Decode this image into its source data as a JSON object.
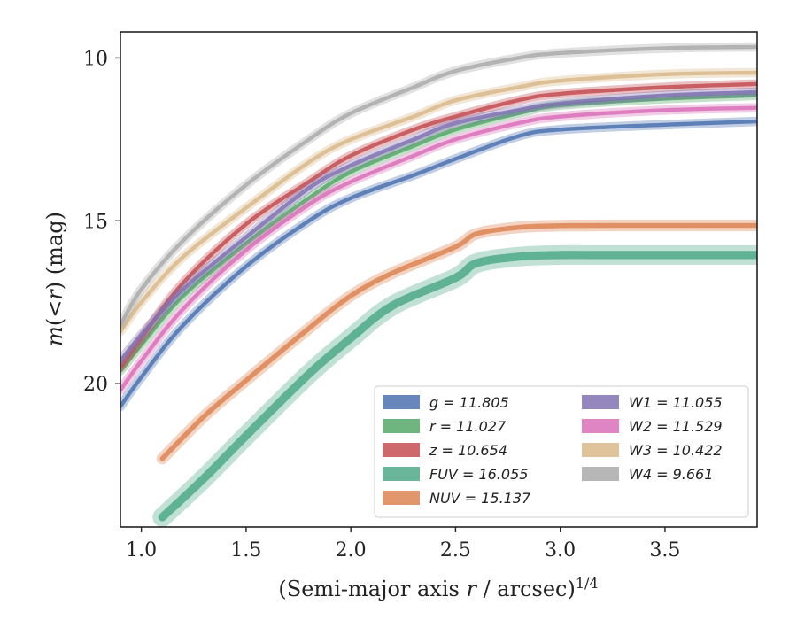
{
  "chart_data": {
    "type": "line",
    "xlabel": "(Semi-major axis r / arcsec)^1/4",
    "ylabel": "m(<r) (mag)",
    "xlim": [
      0.9,
      3.94
    ],
    "ylim": [
      24.4,
      9.2
    ],
    "y_inverted": true,
    "grid": false,
    "legend_position": "lower-right",
    "legend_columns": 2,
    "x_ticks": [
      {
        "value": 1.0,
        "label": "1.0"
      },
      {
        "value": 1.5,
        "label": "1.5"
      },
      {
        "value": 2.0,
        "label": "2.0"
      },
      {
        "value": 2.5,
        "label": "2.5"
      },
      {
        "value": 3.0,
        "label": "3.0"
      },
      {
        "value": 3.5,
        "label": "3.5"
      }
    ],
    "y_ticks": [
      {
        "value": 10,
        "label": "10"
      },
      {
        "value": 15,
        "label": "15"
      },
      {
        "value": 20,
        "label": "20"
      }
    ],
    "series": [
      {
        "name": "g",
        "label": "g = 11.805",
        "color": "#4c72b0",
        "width_mag": 0.12,
        "x": [
          0.9,
          1.0,
          1.2,
          1.5,
          1.8,
          2.0,
          2.3,
          2.5,
          2.8,
          3.0,
          3.5,
          3.94
        ],
        "y": [
          20.7,
          19.8,
          18.2,
          16.4,
          15.0,
          14.3,
          13.6,
          13.1,
          12.4,
          12.2,
          12.05,
          11.95
        ]
      },
      {
        "name": "r",
        "label": "r = 11.027",
        "color": "#55a868",
        "width_mag": 0.12,
        "x": [
          0.9,
          1.0,
          1.2,
          1.5,
          1.8,
          2.0,
          2.3,
          2.5,
          2.8,
          3.0,
          3.5,
          3.94
        ],
        "y": [
          19.6,
          18.8,
          17.3,
          15.7,
          14.3,
          13.5,
          12.7,
          12.2,
          11.7,
          11.45,
          11.25,
          11.15
        ]
      },
      {
        "name": "z",
        "label": "z = 10.654",
        "color": "#c44e52",
        "width_mag": 0.12,
        "x": [
          0.9,
          1.0,
          1.2,
          1.5,
          1.8,
          2.0,
          2.3,
          2.5,
          2.8,
          3.0,
          3.5,
          3.94
        ],
        "y": [
          19.5,
          18.6,
          16.9,
          15.1,
          13.8,
          13.0,
          12.2,
          11.8,
          11.3,
          11.1,
          10.9,
          10.8
        ]
      },
      {
        "name": "FUV",
        "label": "FUV = 16.055",
        "color": "#4fa98a",
        "width_mag": 0.25,
        "x": [
          1.1,
          1.3,
          1.5,
          1.8,
          2.0,
          2.2,
          2.5,
          2.6,
          2.8,
          3.0,
          3.2,
          3.94
        ],
        "y": [
          24.1,
          22.9,
          21.6,
          19.7,
          18.6,
          17.6,
          16.75,
          16.3,
          16.1,
          16.05,
          16.05,
          16.05
        ]
      },
      {
        "name": "NUV",
        "label": "NUV = 15.137",
        "color": "#dd8452",
        "width_mag": 0.15,
        "x": [
          1.1,
          1.3,
          1.5,
          1.8,
          2.0,
          2.2,
          2.5,
          2.6,
          2.8,
          3.0,
          3.3,
          3.94
        ],
        "y": [
          22.3,
          21.0,
          19.9,
          18.3,
          17.3,
          16.6,
          15.8,
          15.4,
          15.2,
          15.15,
          15.14,
          15.14
        ]
      },
      {
        "name": "W1",
        "label": "W1 = 11.055",
        "color": "#8172b3",
        "width_mag": 0.12,
        "x": [
          0.9,
          1.0,
          1.2,
          1.5,
          1.8,
          2.0,
          2.3,
          2.5,
          2.8,
          3.0,
          3.5,
          3.94
        ],
        "y": [
          19.3,
          18.5,
          17.1,
          15.5,
          14.0,
          13.3,
          12.5,
          12.0,
          11.6,
          11.4,
          11.15,
          11.05
        ]
      },
      {
        "name": "W2",
        "label": "W2 = 11.529",
        "color": "#da70b8",
        "width_mag": 0.12,
        "x": [
          0.9,
          1.0,
          1.2,
          1.5,
          1.8,
          2.0,
          2.3,
          2.5,
          2.8,
          3.0,
          3.5,
          3.94
        ],
        "y": [
          20.2,
          19.3,
          17.7,
          15.9,
          14.5,
          13.8,
          13.0,
          12.5,
          12.0,
          11.8,
          11.6,
          11.53
        ]
      },
      {
        "name": "W3",
        "label": "W3 = 10.422",
        "color": "#d9b98a",
        "width_mag": 0.12,
        "x": [
          0.9,
          1.0,
          1.2,
          1.5,
          1.8,
          2.0,
          2.3,
          2.5,
          2.8,
          3.0,
          3.5,
          3.94
        ],
        "y": [
          18.4,
          17.5,
          16.1,
          14.6,
          13.2,
          12.5,
          11.8,
          11.3,
          10.9,
          10.7,
          10.5,
          10.45
        ]
      },
      {
        "name": "W4",
        "label": "W4 = 9.661",
        "color": "#aaaaaa",
        "width_mag": 0.12,
        "x": [
          0.9,
          1.0,
          1.2,
          1.5,
          1.8,
          2.0,
          2.3,
          2.5,
          2.8,
          3.0,
          3.5,
          3.94
        ],
        "y": [
          18.2,
          17.1,
          15.6,
          13.9,
          12.5,
          11.7,
          10.9,
          10.4,
          10.0,
          9.85,
          9.7,
          9.66
        ]
      }
    ]
  }
}
